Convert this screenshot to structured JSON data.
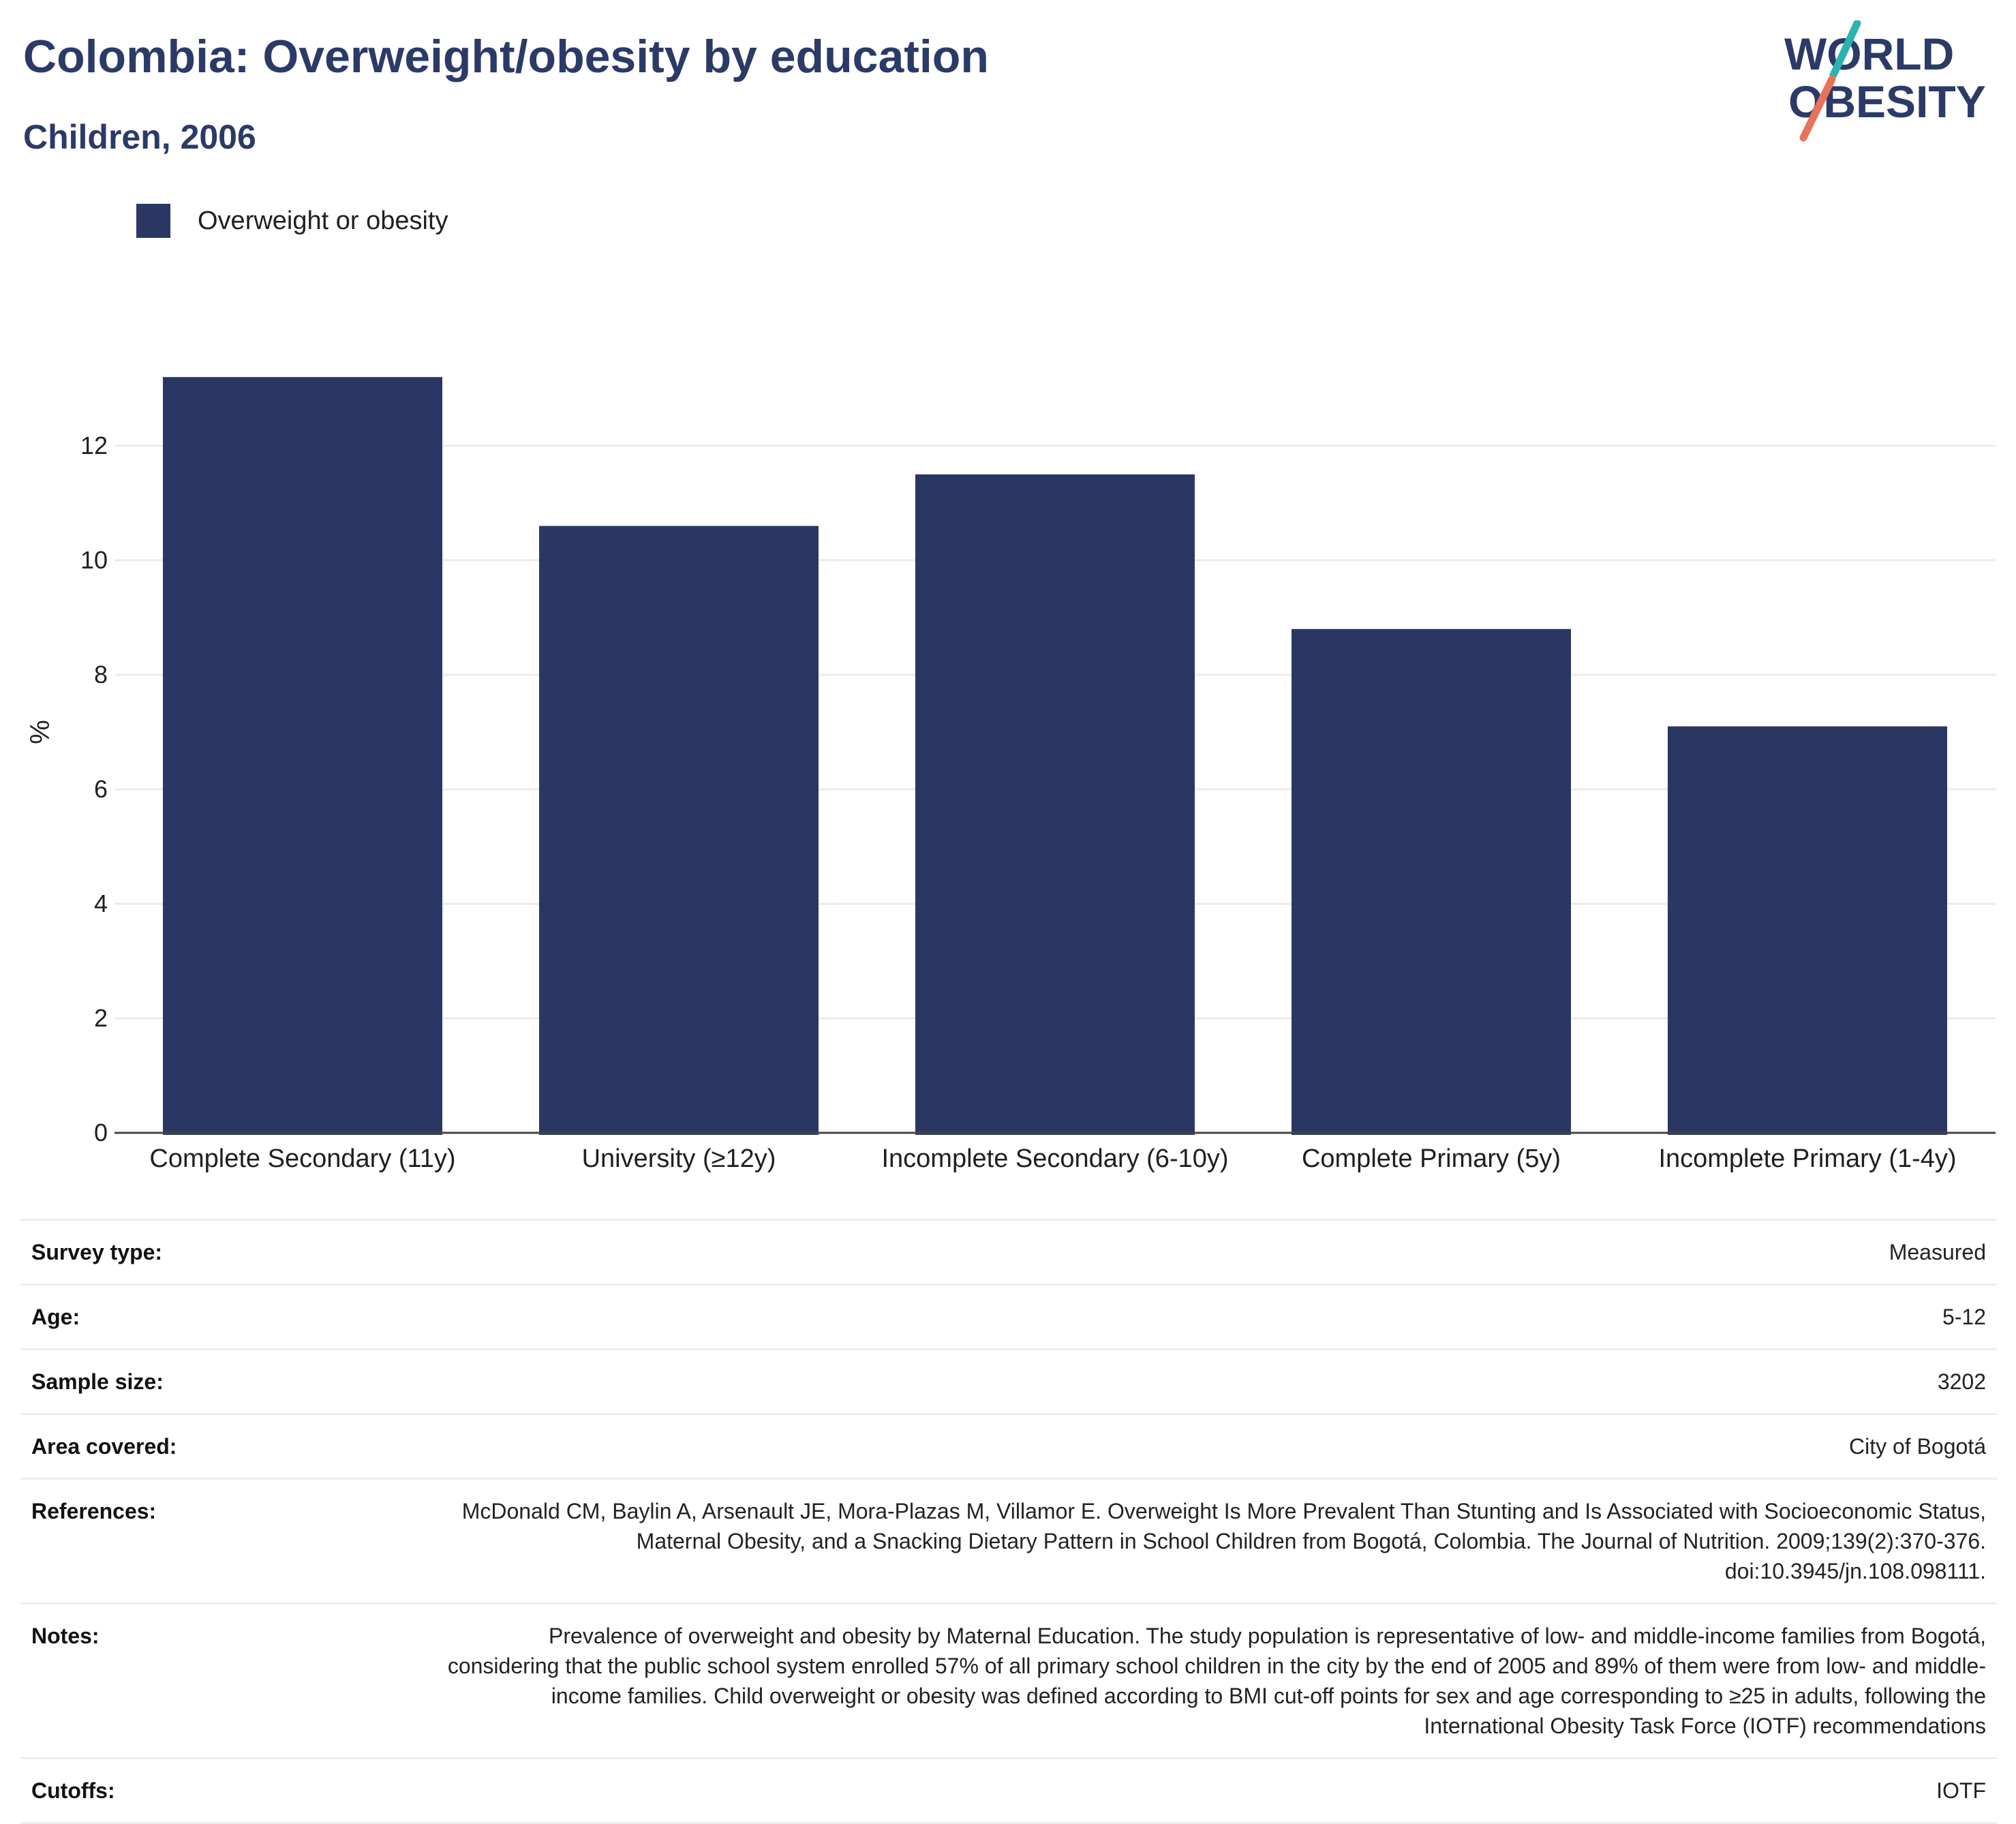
{
  "header": {
    "title": "Colombia: Overweight/obesity by education",
    "subtitle": "Children, 2006"
  },
  "logo": {
    "line1": "WORLD",
    "line2": "OBESITY",
    "colors": {
      "text": "#2b3a67",
      "slash_top": "#2bb3b1",
      "slash_bottom": "#e8735a"
    }
  },
  "legend": {
    "label": "Overweight or obesity",
    "color": "#2b3763"
  },
  "chart_data": {
    "type": "bar",
    "categories": [
      "Complete Secondary (11y)",
      "University (≥12y)",
      "Incomplete Secondary (6-10y)",
      "Complete Primary (5y)",
      "Incomplete Primary (1-4y)"
    ],
    "series": [
      {
        "name": "Overweight or obesity",
        "values": [
          13.2,
          10.6,
          11.5,
          8.8,
          7.1
        ],
        "color": "#2b3763"
      }
    ],
    "title": "Colombia: Overweight/obesity by education",
    "subtitle": "Children, 2006",
    "xlabel": "",
    "ylabel": "%",
    "ylim": [
      0,
      14
    ],
    "yticks": [
      0,
      2,
      4,
      6,
      8,
      10,
      12
    ],
    "grid": true,
    "legend_position": "top-left"
  },
  "meta": [
    {
      "key": "Survey type:",
      "value": "Measured"
    },
    {
      "key": "Age:",
      "value": "5-12"
    },
    {
      "key": "Sample size:",
      "value": "3202"
    },
    {
      "key": "Area covered:",
      "value": "City of Bogotá"
    },
    {
      "key": "References:",
      "value": "McDonald CM, Baylin A, Arsenault JE, Mora-Plazas M, Villamor E. Overweight Is More Prevalent Than Stunting and Is Associated with Socioeconomic Status, Maternal Obesity, and a Snacking Dietary Pattern in School Children from Bogotá, Colombia. The Journal of Nutrition. 2009;139(2):370-376. doi:10.3945/jn.108.098111."
    },
    {
      "key": "Notes:",
      "value": "Prevalence of overweight and obesity by Maternal Education. The study population is representative of low- and middle-income families from Bogotá, considering that the public school system enrolled 57% of all primary school children in the city by the end of 2005 and 89% of them were from low- and middle-income families. Child overweight or obesity was defined according to BMI cut-off points for sex and age corresponding to ≥25 in adults, following the International Obesity Task Force (IOTF) recommendations"
    },
    {
      "key": "Cutoffs:",
      "value": "IOTF"
    }
  ]
}
